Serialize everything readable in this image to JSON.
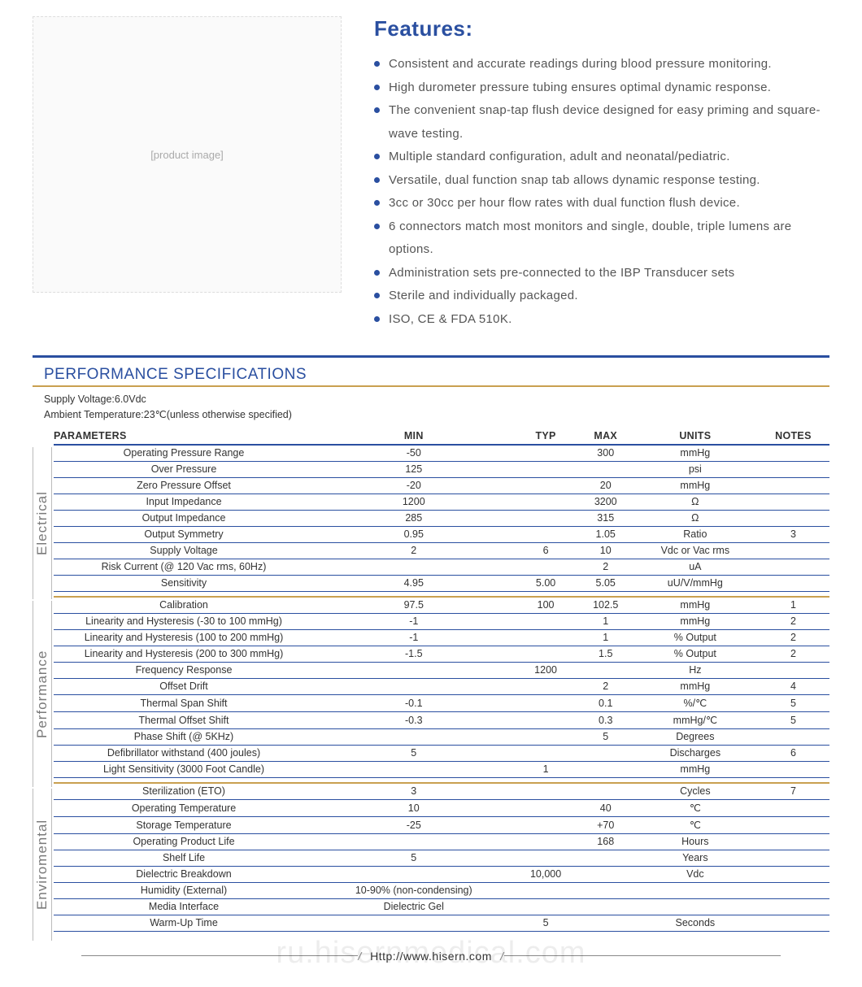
{
  "colors": {
    "accent": "#2a4fa0",
    "features_text": "#555555",
    "section_border_top": "#2a4fa0",
    "section_border_bottom": "#c9a050",
    "row_border": "#2a4fa0",
    "group_label": "#7a7a7a",
    "group_label_border": "#bbbbbb",
    "header_underline": "#2a4fa0",
    "spec_title": "#2a4fa0",
    "divider_env": "#c9a050"
  },
  "features": {
    "title": "Features:",
    "items": [
      "Consistent and accurate readings during blood pressure monitoring.",
      "High durometer pressure tubing ensures optimal dynamic response.",
      "The convenient snap-tap flush device designed for easy priming and square-wave testing.",
      "Multiple standard configuration, adult and neonatal/pediatric.",
      "Versatile, dual function snap tab allows dynamic response testing.",
      "3cc or 30cc per hour flow rates with dual function flush device.",
      "6 connectors match most monitors and single, double, triple lumens are options.",
      "Administration sets pre-connected to the IBP Transducer sets",
      "Sterile and individually packaged.",
      "ISO, CE & FDA 510K."
    ]
  },
  "product_image_alt": "[product image]",
  "spec": {
    "title": "PERFORMANCE SPECIFICATIONS",
    "meta1": "Supply Voltage:6.0Vdc",
    "meta2": "Ambient Temperature:23℃(unless otherwise specified)",
    "columns": [
      "PARAMETERS",
      "MIN",
      "TYP",
      "MAX",
      "UNITS",
      "NOTES"
    ],
    "groups": [
      {
        "label": "Electrical",
        "rows": [
          {
            "param": "Operating Pressure Range",
            "min": "-50",
            "typ": "",
            "max": "300",
            "units": "mmHg",
            "notes": ""
          },
          {
            "param": "Over  Pressure",
            "min": "125",
            "typ": "",
            "max": "",
            "units": "psi",
            "notes": ""
          },
          {
            "param": "Zero Pressure Offset",
            "min": "-20",
            "typ": "",
            "max": "20",
            "units": "mmHg",
            "notes": ""
          },
          {
            "param": "Input Impedance",
            "min": "1200",
            "typ": "",
            "max": "3200",
            "units": "Ω",
            "notes": ""
          },
          {
            "param": "Output Impedance",
            "min": "285",
            "typ": "",
            "max": "315",
            "units": "Ω",
            "notes": ""
          },
          {
            "param": "Output Symmetry",
            "min": "0.95",
            "typ": "",
            "max": "1.05",
            "units": "Ratio",
            "notes": "3"
          },
          {
            "param": "Supply Voltage",
            "min": "2",
            "typ": "6",
            "max": "10",
            "units": "Vdc or Vac rms",
            "notes": ""
          },
          {
            "param": "Risk Current (@ 120 Vac rms, 60Hz)",
            "min": "",
            "typ": "",
            "max": "2",
            "units": "uA",
            "notes": ""
          },
          {
            "param": "Sensitivity",
            "min": "4.95",
            "typ": "5.00",
            "max": "5.05",
            "units": "uU/V/mmHg",
            "notes": ""
          }
        ]
      },
      {
        "label": "Performance",
        "rows": [
          {
            "param": "Calibration",
            "min": "97.5",
            "typ": "100",
            "max": "102.5",
            "units": "mmHg",
            "notes": "1"
          },
          {
            "param": "Linearity and Hysteresis (-30 to 100 mmHg)",
            "min": "-1",
            "typ": "",
            "max": "1",
            "units": "mmHg",
            "notes": "2"
          },
          {
            "param": "Linearity and Hysteresis (100 to 200 mmHg)",
            "min": "-1",
            "typ": "",
            "max": "1",
            "units": "% Output",
            "notes": "2"
          },
          {
            "param": "Linearity and Hysteresis (200 to 300 mmHg)",
            "min": "-1.5",
            "typ": "",
            "max": "1.5",
            "units": "% Output",
            "notes": "2"
          },
          {
            "param": "Frequency Response",
            "min": "",
            "typ": "1200",
            "max": "",
            "units": "Hz",
            "notes": ""
          },
          {
            "param": "Offset Drift",
            "min": "",
            "typ": "",
            "max": "2",
            "units": "mmHg",
            "notes": "4"
          },
          {
            "param": "Thermal Span Shift",
            "min": "-0.1",
            "typ": "",
            "max": "0.1",
            "units": "%/℃",
            "notes": "5"
          },
          {
            "param": "Thermal Offset Shift",
            "min": "-0.3",
            "typ": "",
            "max": "0.3",
            "units": "mmHg/℃",
            "notes": "5"
          },
          {
            "param": "Phase Shift (@ 5KHz)",
            "min": "",
            "typ": "",
            "max": "5",
            "units": "Degrees",
            "notes": ""
          },
          {
            "param": "Defibrillator withstand (400 joules)",
            "min": "5",
            "typ": "",
            "max": "",
            "units": "Discharges",
            "notes": "6"
          },
          {
            "param": "Light Sensitivity (3000 Foot Candle)",
            "min": "",
            "typ": "1",
            "max": "",
            "units": "mmHg",
            "notes": ""
          }
        ]
      },
      {
        "label": "Enviromental",
        "rows": [
          {
            "param": "Sterilization (ETO)",
            "min": "3",
            "typ": "",
            "max": "",
            "units": "Cycles",
            "notes": "7"
          },
          {
            "param": "Operating Temperature",
            "min": "10",
            "typ": "",
            "max": "40",
            "units": "℃",
            "notes": ""
          },
          {
            "param": "Storage Temperature",
            "min": "-25",
            "typ": "",
            "max": "+70",
            "units": "℃",
            "notes": ""
          },
          {
            "param": "Operating Product Life",
            "min": "",
            "typ": "",
            "max": "168",
            "units": "Hours",
            "notes": ""
          },
          {
            "param": "Shelf Life",
            "min": "5",
            "typ": "",
            "max": "",
            "units": "Years",
            "notes": ""
          },
          {
            "param": "Dielectric Breakdown",
            "min": "",
            "typ": "10,000",
            "max": "",
            "units": "Vdc",
            "notes": ""
          },
          {
            "param": "Humidity (External)",
            "min": "10-90% (non-condensing)",
            "typ": "",
            "max": "",
            "units": "",
            "notes": ""
          },
          {
            "param": "Media Interface",
            "min": "Dielectric Gel",
            "typ": "",
            "max": "",
            "units": "",
            "notes": ""
          },
          {
            "param": "Warm-Up Time",
            "min": "",
            "typ": "5",
            "max": "",
            "units": "Seconds",
            "notes": ""
          }
        ]
      }
    ]
  },
  "footer": {
    "url": "Http://www.hisern.com"
  },
  "watermark": "ru.hisernmedical.com"
}
